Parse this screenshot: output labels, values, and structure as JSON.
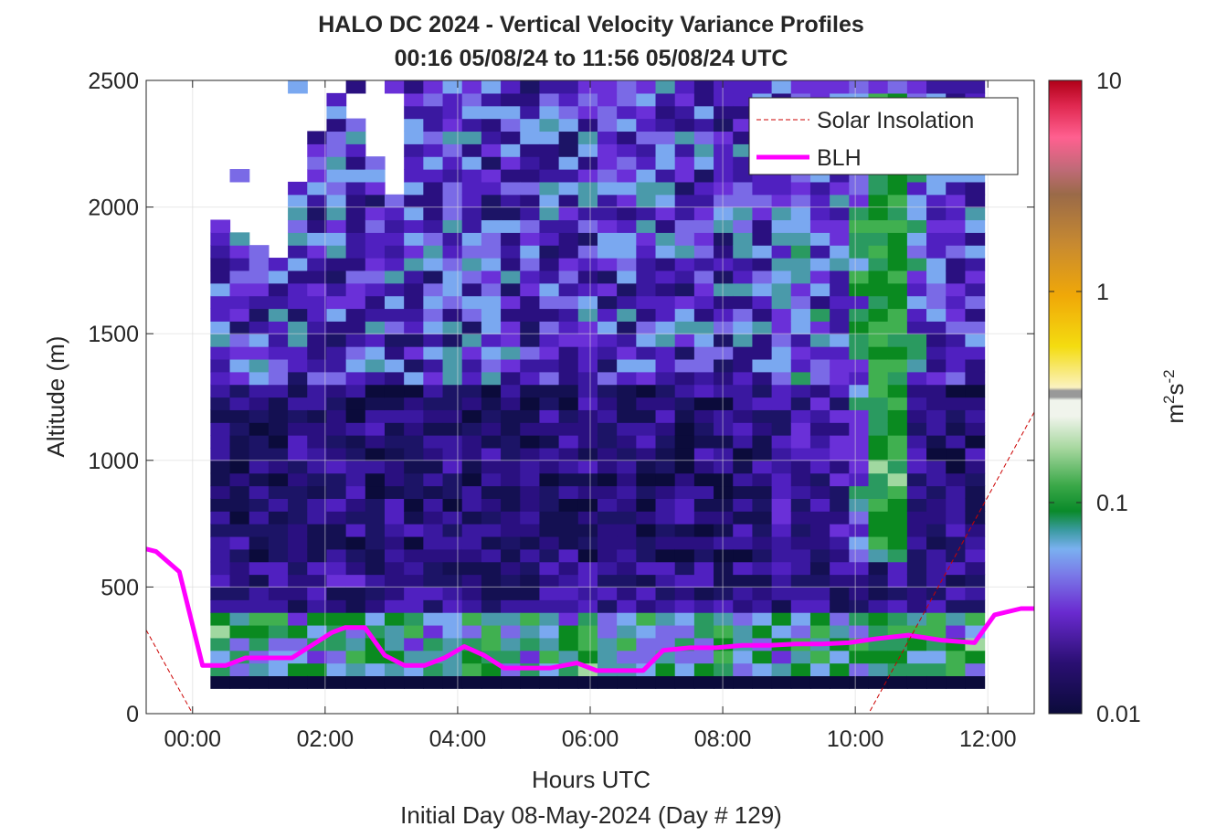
{
  "chart_data": {
    "type": "heatmap",
    "title": "HALO DC 2024 - Vertical Velocity Variance Profiles",
    "subtitle": "00:16 05/08/24 to 11:56 05/08/24  UTC",
    "xlabel": "Hours UTC",
    "xlabel2": "Initial Day 08-May-2024 (Day # 129)",
    "ylabel": "Altitude (m)",
    "xlim": [
      -0.7,
      12.7
    ],
    "ylim": [
      0,
      2500
    ],
    "x_ticks": [
      0,
      2,
      4,
      6,
      8,
      10,
      12
    ],
    "x_tick_labels": [
      "00:00",
      "02:00",
      "04:00",
      "06:00",
      "08:00",
      "10:00",
      "12:00"
    ],
    "y_ticks": [
      0,
      500,
      1000,
      1500,
      2000,
      2500
    ],
    "y_tick_labels": [
      "0",
      "500",
      "1000",
      "1500",
      "2000",
      "2500"
    ],
    "grid": true,
    "legend": {
      "placement": "top-right",
      "entries": [
        {
          "label": "Solar Insolation",
          "color": "#cc0000",
          "style": "dashed"
        },
        {
          "label": "BLH",
          "color": "#ff00ff",
          "style": "solid"
        }
      ]
    },
    "colorbar": {
      "label_base": "m",
      "label_exp1": "2",
      "label_mid": "s",
      "label_exp2": "-2",
      "scale": "log",
      "range": [
        0.01,
        10
      ],
      "ticks": [
        0.01,
        0.1,
        1,
        10
      ],
      "tick_labels": [
        "0.01",
        "0.1",
        "1",
        "10"
      ]
    },
    "heatmap_extent": {
      "x_start": 0.27,
      "x_end": 11.95,
      "y_start": 100,
      "y_end": 2500
    },
    "series": [
      {
        "name": "BLH",
        "x": [
          -0.7,
          -0.55,
          -0.2,
          0.15,
          0.5,
          0.8,
          1.1,
          1.5,
          1.8,
          2.1,
          2.3,
          2.6,
          2.9,
          3.2,
          3.5,
          3.8,
          4.1,
          4.4,
          4.7,
          5.0,
          5.4,
          5.8,
          6.1,
          6.4,
          6.8,
          7.1,
          7.5,
          7.9,
          8.3,
          8.7,
          9.1,
          9.5,
          9.9,
          10.3,
          10.8,
          11.3,
          11.8,
          12.1,
          12.5,
          12.7
        ],
        "y": [
          650,
          640,
          560,
          190,
          190,
          220,
          220,
          220,
          270,
          320,
          340,
          340,
          230,
          190,
          190,
          220,
          265,
          230,
          180,
          180,
          180,
          200,
          170,
          170,
          170,
          250,
          260,
          260,
          270,
          270,
          275,
          275,
          280,
          295,
          310,
          290,
          280,
          390,
          415,
          415
        ]
      },
      {
        "name": "Solar Insolation",
        "x": [
          -0.7,
          0.0,
          10.2,
          12.7
        ],
        "y": [
          330,
          0,
          0,
          1190
        ]
      }
    ]
  }
}
